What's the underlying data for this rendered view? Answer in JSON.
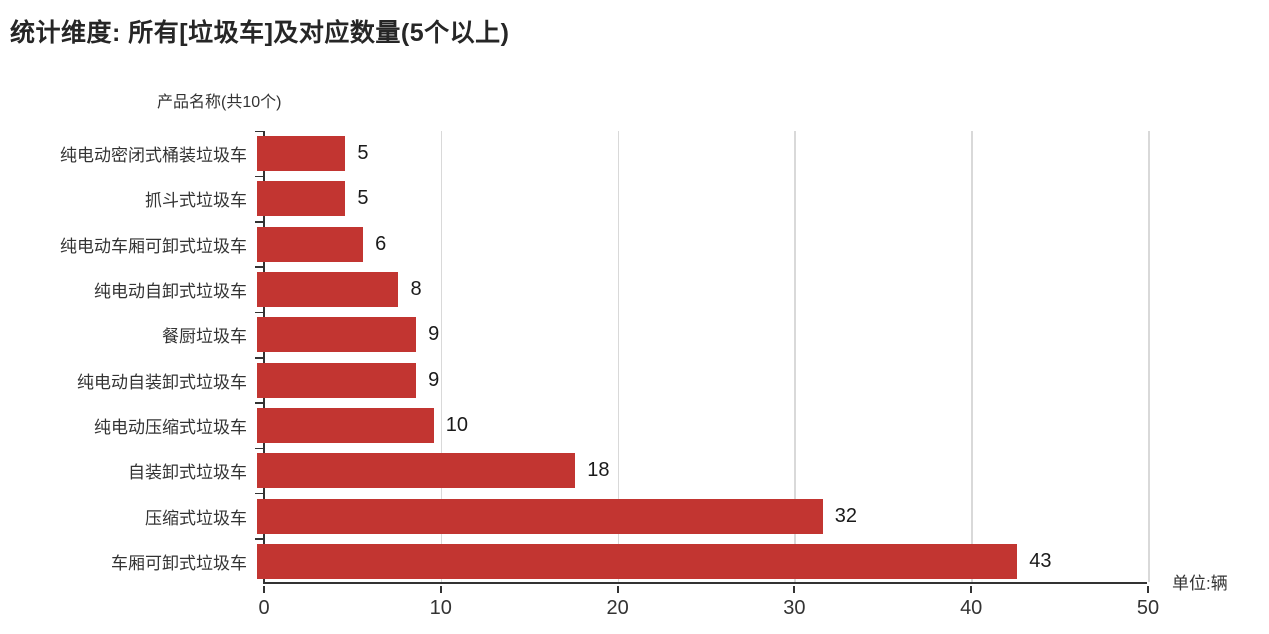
{
  "title": "统计维度: 所有[垃圾车]及对应数量(5个以上)",
  "y_axis_title": "产品名称(共10个)",
  "unit_label": "单位:辆",
  "colors": {
    "bar": "#c23531",
    "gridline": "#d9d9d9",
    "axis": "#333333",
    "text": "#333333",
    "title": "#262626",
    "background": "#ffffff"
  },
  "chart_data": {
    "type": "bar",
    "orientation": "horizontal",
    "title": "统计维度: 所有[垃圾车]及对应数量(5个以上)",
    "categories": [
      "纯电动密闭式桶装垃圾车",
      "抓斗式垃圾车",
      "纯电动车厢可卸式垃圾车",
      "纯电动自卸式垃圾车",
      "餐厨垃圾车",
      "纯电动自装卸式垃圾车",
      "纯电动压缩式垃圾车",
      "自装卸式垃圾车",
      "压缩式垃圾车",
      "车厢可卸式垃圾车"
    ],
    "values": [
      5,
      5,
      6,
      8,
      9,
      9,
      10,
      18,
      32,
      43
    ],
    "value_labels": true,
    "xlabel": "单位:辆",
    "ylabel": "产品名称(共10个)",
    "xlim": [
      0,
      50
    ],
    "x_ticks": [
      0,
      10,
      20,
      30,
      40,
      50
    ],
    "grid": true,
    "legend": "none"
  }
}
